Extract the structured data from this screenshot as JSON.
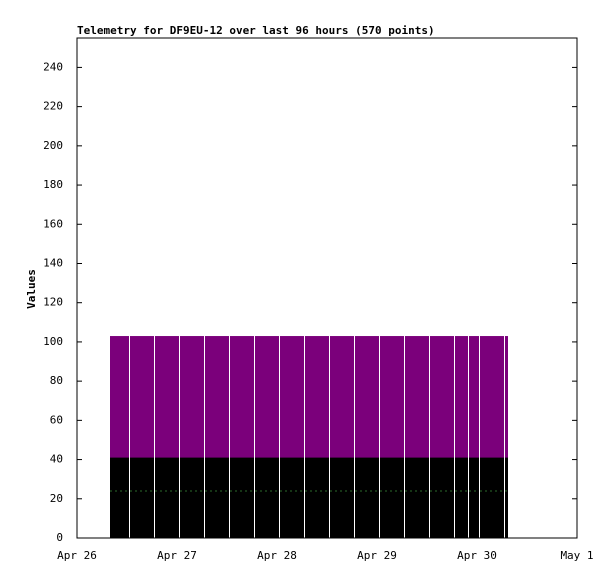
{
  "chart_data": {
    "type": "band",
    "title": "Telemetry for DF9EU-12 over last 96 hours (570 points)",
    "y_label": "Values",
    "x": [
      26.33,
      26.53,
      26.78,
      27.03,
      27.28,
      27.53,
      27.78,
      28.03,
      28.28,
      28.53,
      28.78,
      29.03,
      29.28,
      29.53,
      29.78,
      29.92,
      30.03,
      30.28
    ],
    "series": [
      {
        "color": "#7b007b",
        "values": [
          103,
          103,
          103,
          103,
          103,
          103,
          103,
          103,
          103,
          103,
          103,
          103,
          103,
          103,
          103,
          103,
          103,
          103
        ]
      },
      {
        "color": "#000000",
        "values": [
          41,
          41,
          41,
          41,
          41,
          41,
          41,
          41,
          41,
          41,
          41,
          41,
          41,
          41,
          41,
          41,
          41,
          41
        ]
      },
      {
        "color": "#2a6a2a",
        "values": [
          24,
          24,
          24,
          24,
          24,
          24,
          24,
          24,
          24,
          24,
          24,
          24,
          24,
          24,
          24,
          24,
          24,
          24
        ]
      }
    ],
    "xlim": [
      26,
      31
    ],
    "xticks": [
      {
        "value": 26,
        "label": "Apr 26"
      },
      {
        "value": 27,
        "label": "Apr 27"
      },
      {
        "value": 28,
        "label": "Apr 28"
      },
      {
        "value": 29,
        "label": "Apr 29"
      },
      {
        "value": 30,
        "label": "Apr 30"
      },
      {
        "value": 31,
        "label": "May 1"
      }
    ],
    "ylim": [
      0,
      255
    ],
    "yticks": [
      0,
      20,
      40,
      60,
      80,
      100,
      120,
      140,
      160,
      180,
      200,
      220,
      240
    ]
  }
}
